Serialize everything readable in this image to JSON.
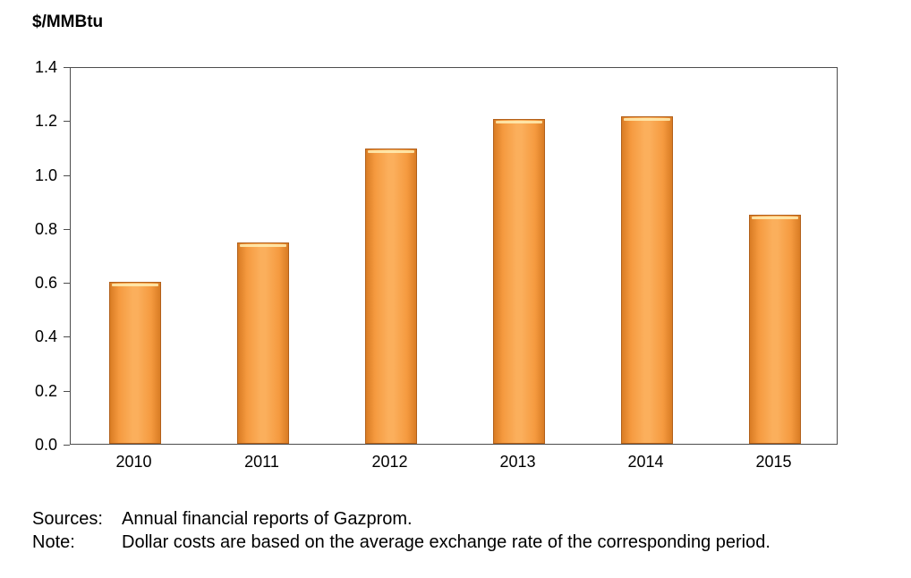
{
  "title": "$/MMBtu",
  "chart_data": {
    "type": "bar",
    "title": "$/MMBtu",
    "categories": [
      "2010",
      "2011",
      "2012",
      "2013",
      "2014",
      "2015"
    ],
    "values": [
      0.6,
      0.745,
      1.095,
      1.205,
      1.215,
      0.85
    ],
    "xlabel": "",
    "ylabel": "$/MMBtu",
    "ylim": [
      0,
      1.4
    ],
    "ytick_step": 0.2,
    "yticks": [
      "1.4",
      "1.2",
      "1.0",
      "0.8",
      "0.6",
      "0.4",
      "0.2",
      "0.0"
    ],
    "grid": false,
    "legend": "none",
    "bar_color": "#F79646",
    "bar_border_color": "#B2601A"
  },
  "footer": {
    "sources_label": "Sources:",
    "sources_text": "Annual financial reports of Gazprom.",
    "note_label": "Note:",
    "note_text": "Dollar costs are based on the average exchange rate of the corresponding period."
  }
}
